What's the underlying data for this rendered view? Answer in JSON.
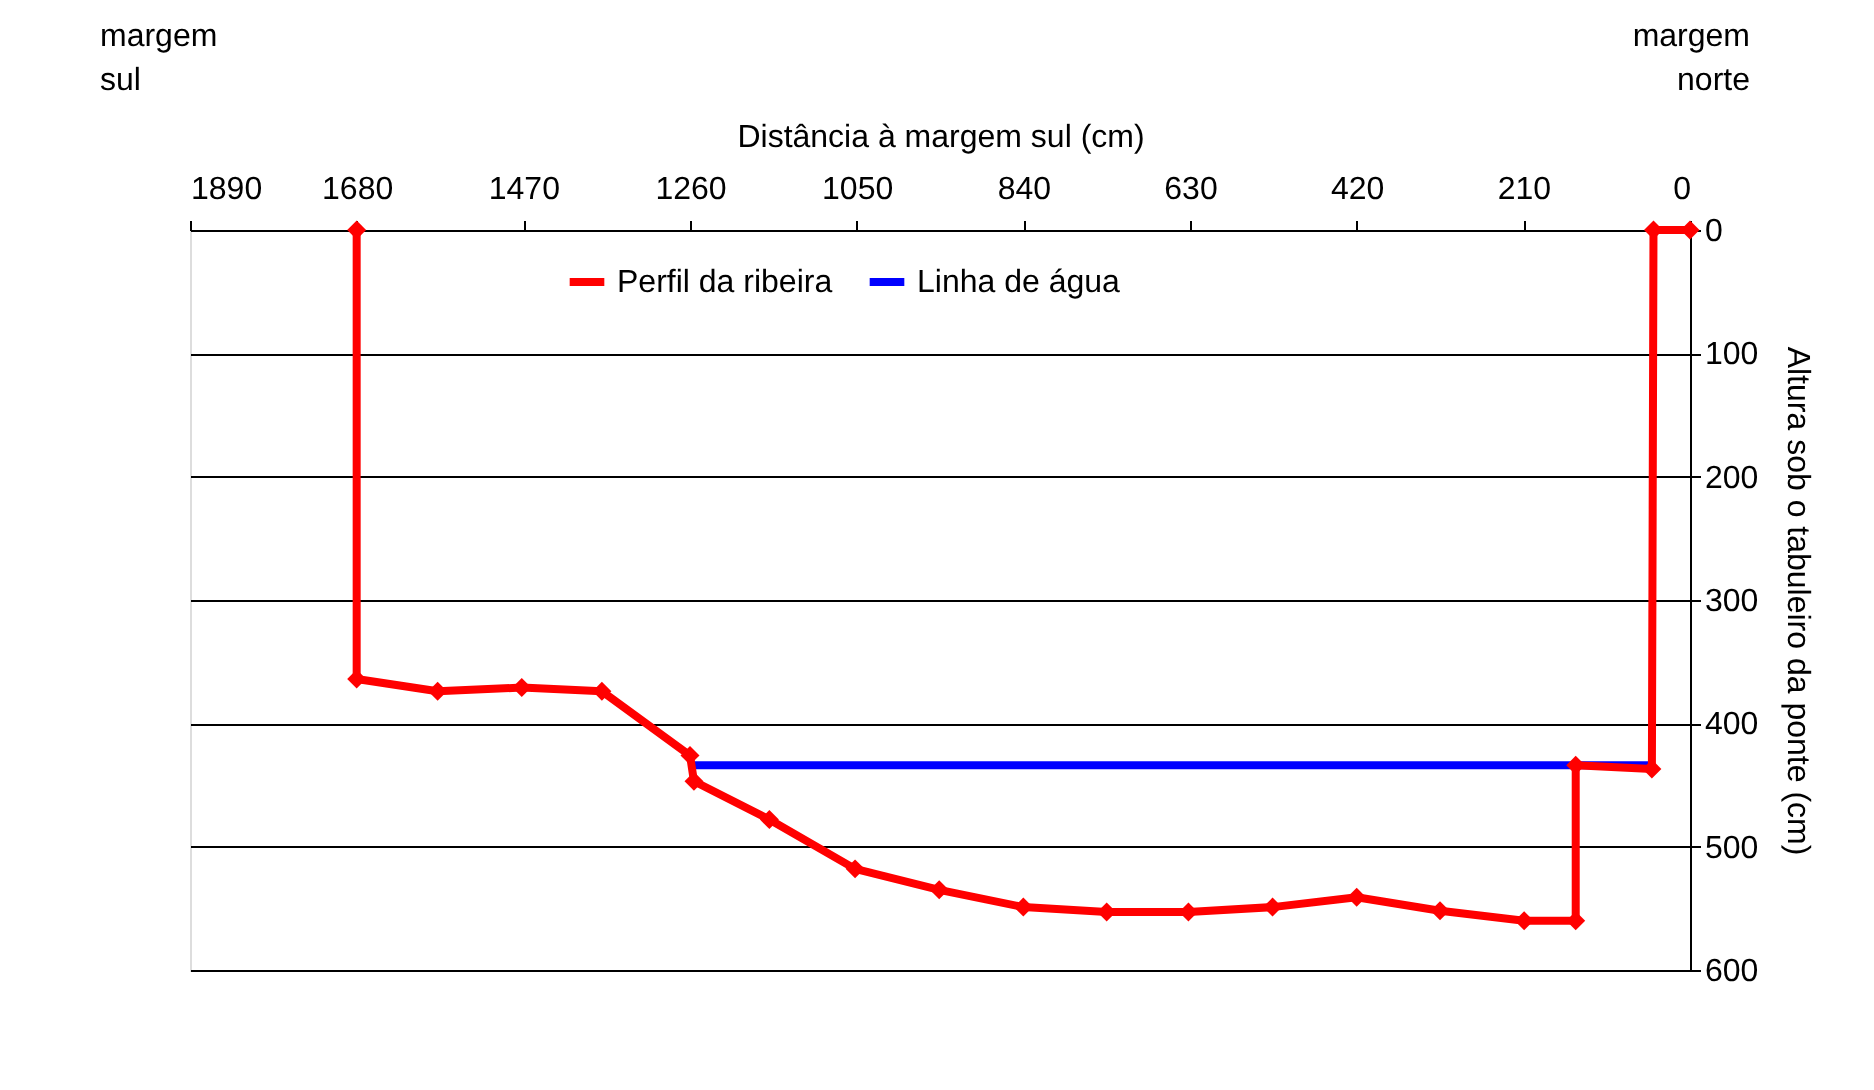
{
  "chart_data": {
    "type": "line",
    "xlabel": "Distância à margem sul (cm)",
    "ylabel": "Altura sob o tabuleiro da ponte (cm)",
    "annotations": [
      "margem sul",
      "margem norte"
    ],
    "series": [
      {
        "name": "Perfil da ribeira",
        "color": "#ff0000",
        "marker": "diamond",
        "x": [
          1680,
          1680,
          1578,
          1472,
          1371,
          1260,
          1255,
          1160,
          1052,
          946,
          840,
          735,
          632,
          526,
          420,
          315,
          209,
          144,
          144,
          48,
          46,
          0
        ],
        "values": [
          0,
          364,
          374,
          371,
          374,
          426,
          447,
          478,
          518,
          535,
          549,
          553,
          553,
          549,
          541,
          552,
          560,
          560,
          434,
          437,
          0,
          0
        ]
      },
      {
        "name": "Linha de água",
        "color": "#0000ff",
        "marker": "none",
        "x": [
          1260,
          48
        ],
        "values": [
          434,
          434
        ]
      }
    ],
    "xlim": [
      1890,
      0
    ],
    "xticks": [
      1890,
      1680,
      1470,
      1260,
      1050,
      840,
      630,
      420,
      210,
      0
    ],
    "ylim": [
      600,
      0
    ],
    "yticks": [
      0,
      100,
      200,
      300,
      400,
      500,
      600
    ],
    "grid": "y",
    "legend": "top"
  }
}
